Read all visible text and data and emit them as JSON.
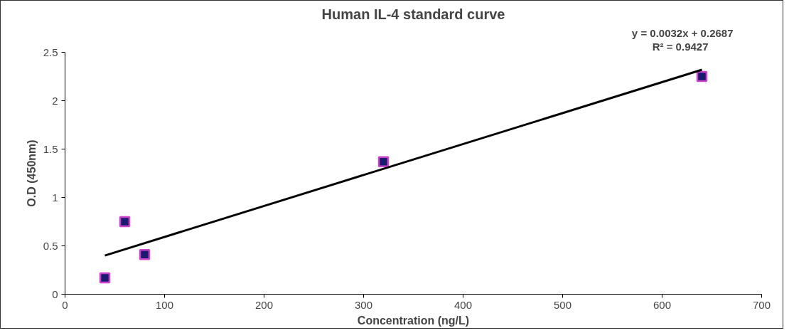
{
  "chart_data": {
    "type": "scatter",
    "title": "Human IL-4 standard curve",
    "xlabel": "Concentration (ng/L)",
    "ylabel": "O.D (450nm)",
    "x": [
      40,
      60,
      80,
      320,
      640
    ],
    "series": [
      {
        "color": "#1a1a6e",
        "values": [
          0.17,
          0.75,
          0.41,
          1.37,
          2.25
        ],
        "marker": "square"
      },
      {
        "type": "line",
        "color": "#000000",
        "x": [
          40,
          640
        ],
        "values": [
          0.4,
          2.32
        ],
        "marker": "none"
      }
    ],
    "annotations": [
      "y = 0.0032x + 0.2687",
      "R² = 0.9427"
    ],
    "xlim": [
      0,
      700
    ],
    "xticks": [
      0,
      100,
      200,
      300,
      400,
      500,
      600,
      700
    ],
    "ylim": [
      0,
      2.5
    ],
    "yticks": [
      0,
      0.5,
      1,
      1.5,
      2,
      2.5
    ],
    "grid": false
  }
}
